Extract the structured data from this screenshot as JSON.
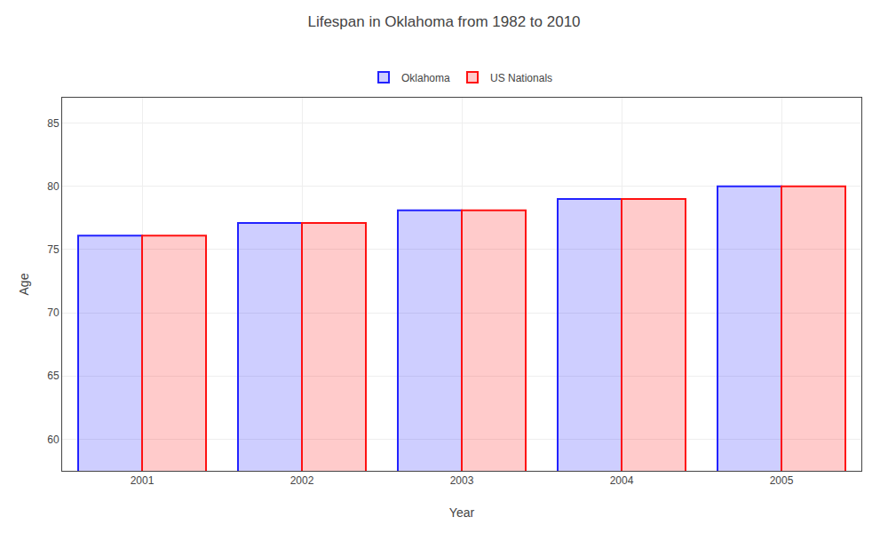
{
  "chart_data": {
    "type": "bar",
    "title": "Lifespan in Oklahoma from 1982 to 2010",
    "xlabel": "Year",
    "ylabel": "Age",
    "categories": [
      "2001",
      "2002",
      "2003",
      "2004",
      "2005"
    ],
    "series": [
      {
        "name": "Oklahoma",
        "color": "#2222ff",
        "values": [
          76.1,
          77.1,
          78.1,
          79.0,
          80.0
        ]
      },
      {
        "name": "US Nationals",
        "color": "#ff1111",
        "values": [
          76.1,
          77.1,
          78.1,
          79.0,
          80.0
        ]
      }
    ],
    "ylim": [
      57.5,
      87
    ],
    "yticks": [
      60,
      65,
      70,
      75,
      80,
      85
    ],
    "grid": true,
    "legend": "top"
  }
}
